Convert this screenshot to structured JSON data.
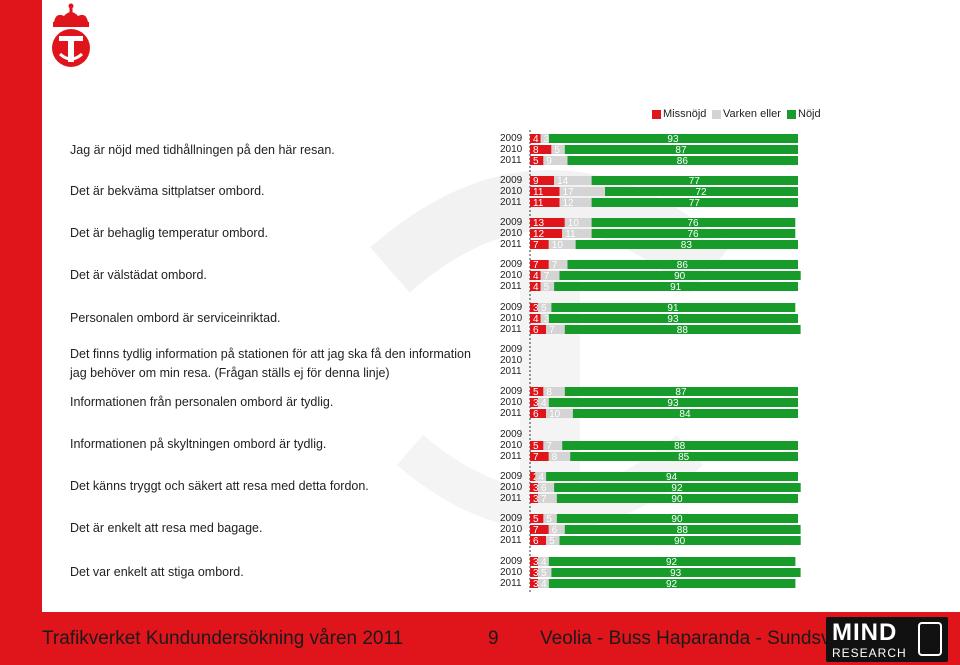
{
  "colors": {
    "missnojd": "#e0151b",
    "varken": "#d4d4d4",
    "nojd": "#179c2c",
    "brand": "#e0151b"
  },
  "chart_data": {
    "type": "bar",
    "stacked": true,
    "orientation": "horizontal",
    "legend": [
      "Missnöjd",
      "Varken eller",
      "Nöjd"
    ],
    "legend_position": "top-right",
    "xlim": [
      0,
      100
    ],
    "questions": [
      {
        "label": "Jag är nöjd med tidhållningen på den här resan.",
        "years": [
          {
            "year": "2009",
            "values": [
              4,
              3,
              93
            ]
          },
          {
            "year": "2010",
            "values": [
              8,
              5,
              87
            ]
          },
          {
            "year": "2011",
            "values": [
              5,
              9,
              86
            ]
          }
        ]
      },
      {
        "label": "Det är bekväma sittplatser ombord.",
        "years": [
          {
            "year": "2009",
            "values": [
              9,
              14,
              77
            ]
          },
          {
            "year": "2010",
            "values": [
              11,
              17,
              72
            ]
          },
          {
            "year": "2011",
            "values": [
              11,
              12,
              77
            ]
          }
        ]
      },
      {
        "label": "Det är behaglig temperatur ombord.",
        "years": [
          {
            "year": "2009",
            "values": [
              13,
              10,
              76
            ]
          },
          {
            "year": "2010",
            "values": [
              12,
              11,
              76
            ]
          },
          {
            "year": "2011",
            "values": [
              7,
              10,
              83
            ]
          }
        ]
      },
      {
        "label": "Det är välstädat ombord.",
        "years": [
          {
            "year": "2009",
            "values": [
              7,
              7,
              86
            ]
          },
          {
            "year": "2010",
            "values": [
              4,
              7,
              90
            ]
          },
          {
            "year": "2011",
            "values": [
              4,
              5,
              91
            ]
          }
        ]
      },
      {
        "label": "Personalen ombord är serviceinriktad.",
        "years": [
          {
            "year": "2009",
            "values": [
              3,
              5,
              91
            ]
          },
          {
            "year": "2010",
            "values": [
              4,
              3,
              93
            ]
          },
          {
            "year": "2011",
            "values": [
              6,
              7,
              88
            ]
          }
        ]
      },
      {
        "label": "Det finns tydlig information på stationen för att jag ska få den information jag behöver om min resa. (Frågan ställs ej för denna linje)",
        "years": [
          {
            "year": "2009",
            "values": null
          },
          {
            "year": "2010",
            "values": null
          },
          {
            "year": "2011",
            "values": null
          }
        ]
      },
      {
        "label": "Informationen från personalen ombord är tydlig.",
        "years": [
          {
            "year": "2009",
            "values": [
              5,
              8,
              87
            ]
          },
          {
            "year": "2010",
            "values": [
              3,
              4,
              93
            ]
          },
          {
            "year": "2011",
            "values": [
              6,
              10,
              84
            ]
          }
        ]
      },
      {
        "label": "Informationen på skyltningen ombord är tydlig.",
        "years": [
          {
            "year": "2009",
            "values": null
          },
          {
            "year": "2010",
            "values": [
              5,
              7,
              88
            ]
          },
          {
            "year": "2011",
            "values": [
              7,
              8,
              85
            ]
          }
        ]
      },
      {
        "label": "Det känns tryggt och säkert att resa med detta fordon.",
        "years": [
          {
            "year": "2009",
            "values": [
              2,
              4,
              94
            ]
          },
          {
            "year": "2010",
            "values": [
              3,
              6,
              92
            ]
          },
          {
            "year": "2011",
            "values": [
              3,
              7,
              90
            ]
          }
        ]
      },
      {
        "label": "Det är enkelt att resa med bagage.",
        "years": [
          {
            "year": "2009",
            "values": [
              5,
              5,
              90
            ]
          },
          {
            "year": "2010",
            "values": [
              7,
              6,
              88
            ]
          },
          {
            "year": "2011",
            "values": [
              6,
              5,
              90
            ]
          }
        ]
      },
      {
        "label": "Det var enkelt att stiga ombord.",
        "years": [
          {
            "year": "2009",
            "values": [
              3,
              4,
              92
            ]
          },
          {
            "year": "2010",
            "values": [
              3,
              5,
              93
            ]
          },
          {
            "year": "2011",
            "values": [
              3,
              4,
              92
            ]
          }
        ]
      }
    ]
  },
  "footer": {
    "survey": "Trafikverket Kundundersökning våren 2011",
    "page_number": "9",
    "route": "Veolia - Buss Haparanda - Sundsvall"
  },
  "brand_logo": {
    "word": "MIND",
    "subword": "RESEARCH"
  }
}
